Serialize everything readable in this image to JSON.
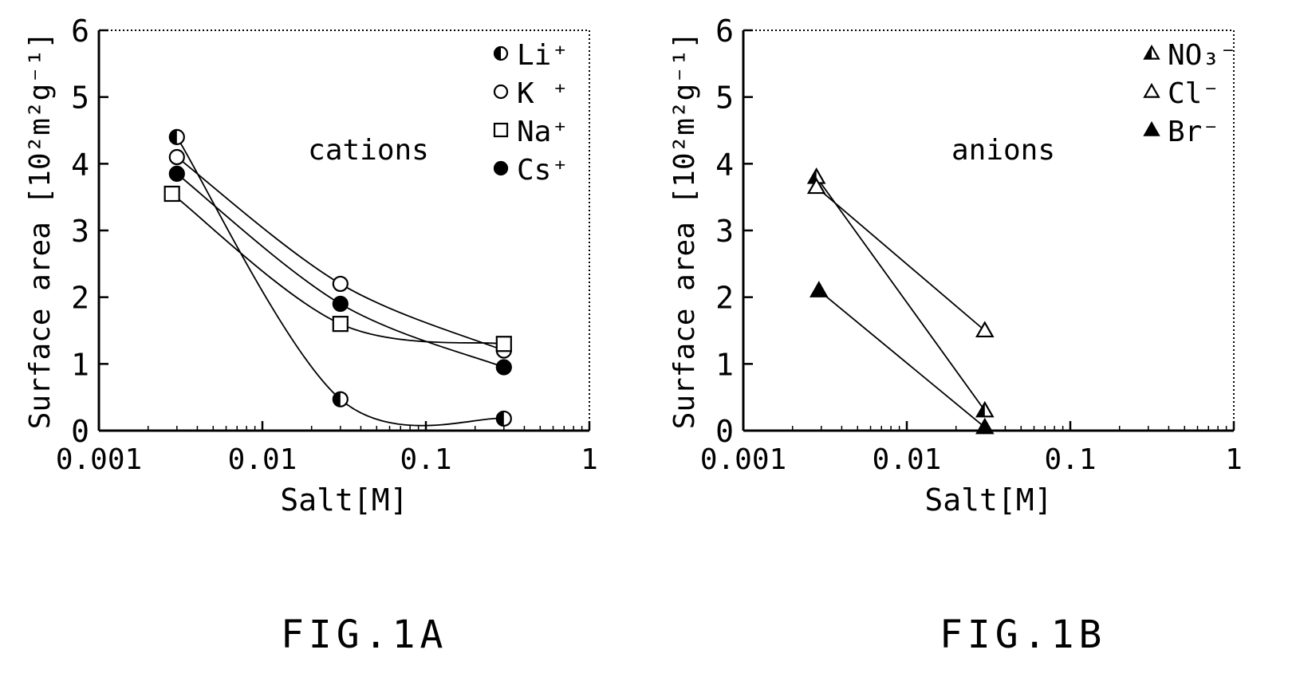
{
  "captions": {
    "a": "FIG.1A",
    "b": "FIG.1B"
  },
  "chart_data": [
    {
      "type": "scatter",
      "id": "fig1a",
      "ylabel": "Surface area [10²m²g⁻¹]",
      "xlabel": "Salt[M]",
      "xscale": "log",
      "xlim": [
        0.001,
        1
      ],
      "ylim": [
        0,
        6
      ],
      "xticks": [
        "0.001",
        "0.01",
        "0.1",
        "1"
      ],
      "yticks": [
        "0",
        "1",
        "2",
        "3",
        "4",
        "5",
        "6"
      ],
      "annotation": "cations",
      "legend_position": "top-right",
      "series": [
        {
          "name": "Li⁺",
          "marker": "half",
          "x": [
            0.003,
            0.03,
            0.3
          ],
          "y": [
            4.4,
            0.47,
            0.18
          ]
        },
        {
          "name": "K ⁺",
          "marker": "circle-open",
          "x": [
            0.003,
            0.03,
            0.3
          ],
          "y": [
            4.1,
            2.2,
            1.2
          ]
        },
        {
          "name": "Na⁺",
          "marker": "square-open",
          "x": [
            0.0028,
            0.03,
            0.3
          ],
          "y": [
            3.55,
            1.6,
            1.3
          ]
        },
        {
          "name": "Cs⁺",
          "marker": "circle-filled",
          "x": [
            0.003,
            0.03,
            0.3
          ],
          "y": [
            3.85,
            1.9,
            0.95
          ]
        }
      ]
    },
    {
      "type": "scatter",
      "id": "fig1b",
      "ylabel": "Surface area [10²m²g⁻¹]",
      "xlabel": "Salt[M]",
      "xscale": "log",
      "xlim": [
        0.001,
        1
      ],
      "ylim": [
        0,
        6
      ],
      "xticks": [
        "0.001",
        "0.01",
        "0.1",
        "1"
      ],
      "yticks": [
        "0",
        "1",
        "2",
        "3",
        "4",
        "5",
        "6"
      ],
      "annotation": "anions",
      "legend_position": "top-right",
      "series": [
        {
          "name": "NO₃⁻",
          "marker": "triangle-half",
          "x": [
            0.0028,
            0.03
          ],
          "y": [
            3.8,
            0.3
          ]
        },
        {
          "name": "Cl⁻",
          "marker": "triangle-open",
          "x": [
            0.0028,
            0.03
          ],
          "y": [
            3.65,
            1.5
          ]
        },
        {
          "name": "Br⁻",
          "marker": "triangle-filled",
          "x": [
            0.0029,
            0.03
          ],
          "y": [
            2.1,
            0.05
          ]
        }
      ]
    }
  ]
}
